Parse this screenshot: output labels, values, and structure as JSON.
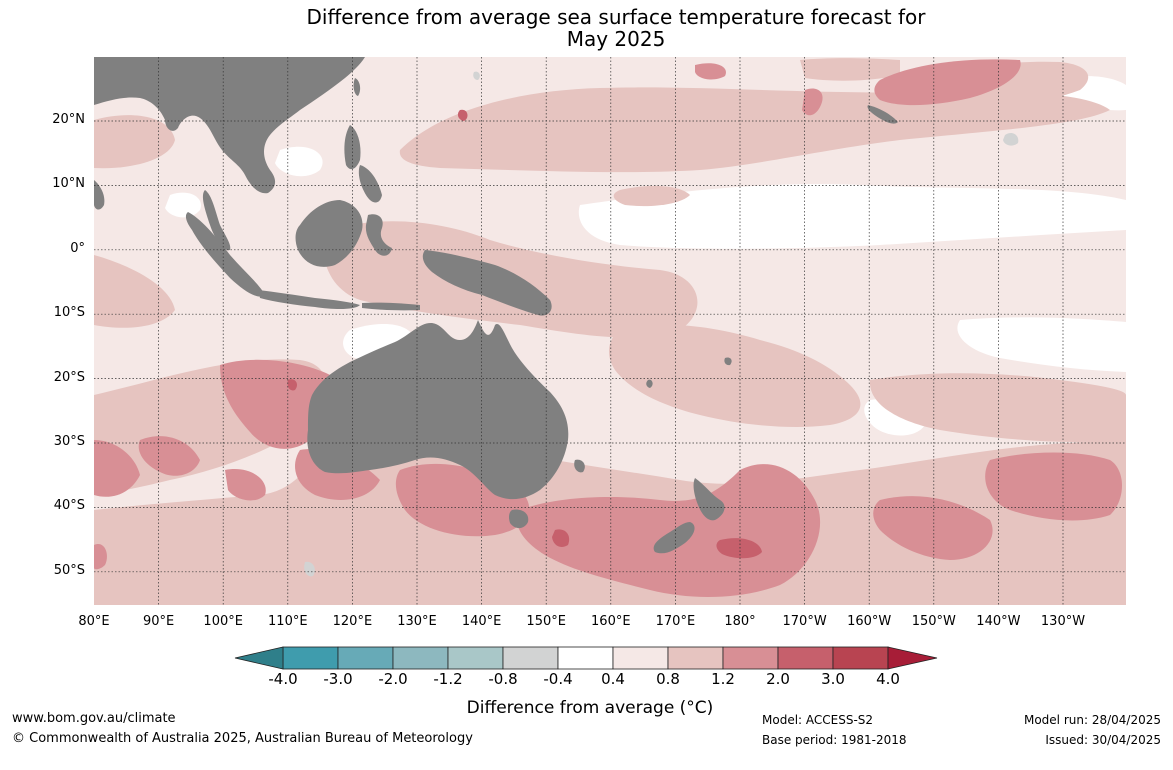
{
  "title": {
    "line1": "Difference from average sea surface temperature forecast for",
    "line2": "May 2025"
  },
  "map": {
    "latitude_labels": [
      "20°N",
      "10°N",
      "0°",
      "10°S",
      "20°S",
      "30°S",
      "40°S",
      "50°S"
    ],
    "longitude_labels": [
      "80°E",
      "90°E",
      "100°E",
      "110°E",
      "120°E",
      "130°E",
      "140°E",
      "150°E",
      "160°E",
      "170°E",
      "180°",
      "170°W",
      "160°W",
      "150°W",
      "140°W",
      "130°W"
    ],
    "land_color": "#808080",
    "gridline_style": "dotted"
  },
  "colorbar": {
    "ticks": [
      "-4.0",
      "-3.0",
      "-2.0",
      "-1.2",
      "-0.8",
      "-0.4",
      "0.4",
      "0.8",
      "1.2",
      "2.0",
      "3.0",
      "4.0"
    ],
    "bin_colors": [
      "#3f9cad",
      "#67aab7",
      "#8db8bf",
      "#a9c7c8",
      "#d2d3d3",
      "#ffffff",
      "#f5e8e6",
      "#e6c4c0",
      "#d88f95",
      "#c6606c",
      "#b84451"
    ],
    "low_extend_color": "#2f7f8a",
    "high_extend_color": "#a71d37",
    "label": "Difference from average (°C)"
  },
  "footer": {
    "website": "www.bom.gov.au/climate",
    "copyright": "© Commonwealth of Australia 2025, Australian Bureau of Meteorology",
    "model": "Model: ACCESS-S2",
    "base_period": "Base period: 1981-2018",
    "model_run": "Model run: 28/04/2025",
    "issued": "Issued: 30/04/2025"
  }
}
